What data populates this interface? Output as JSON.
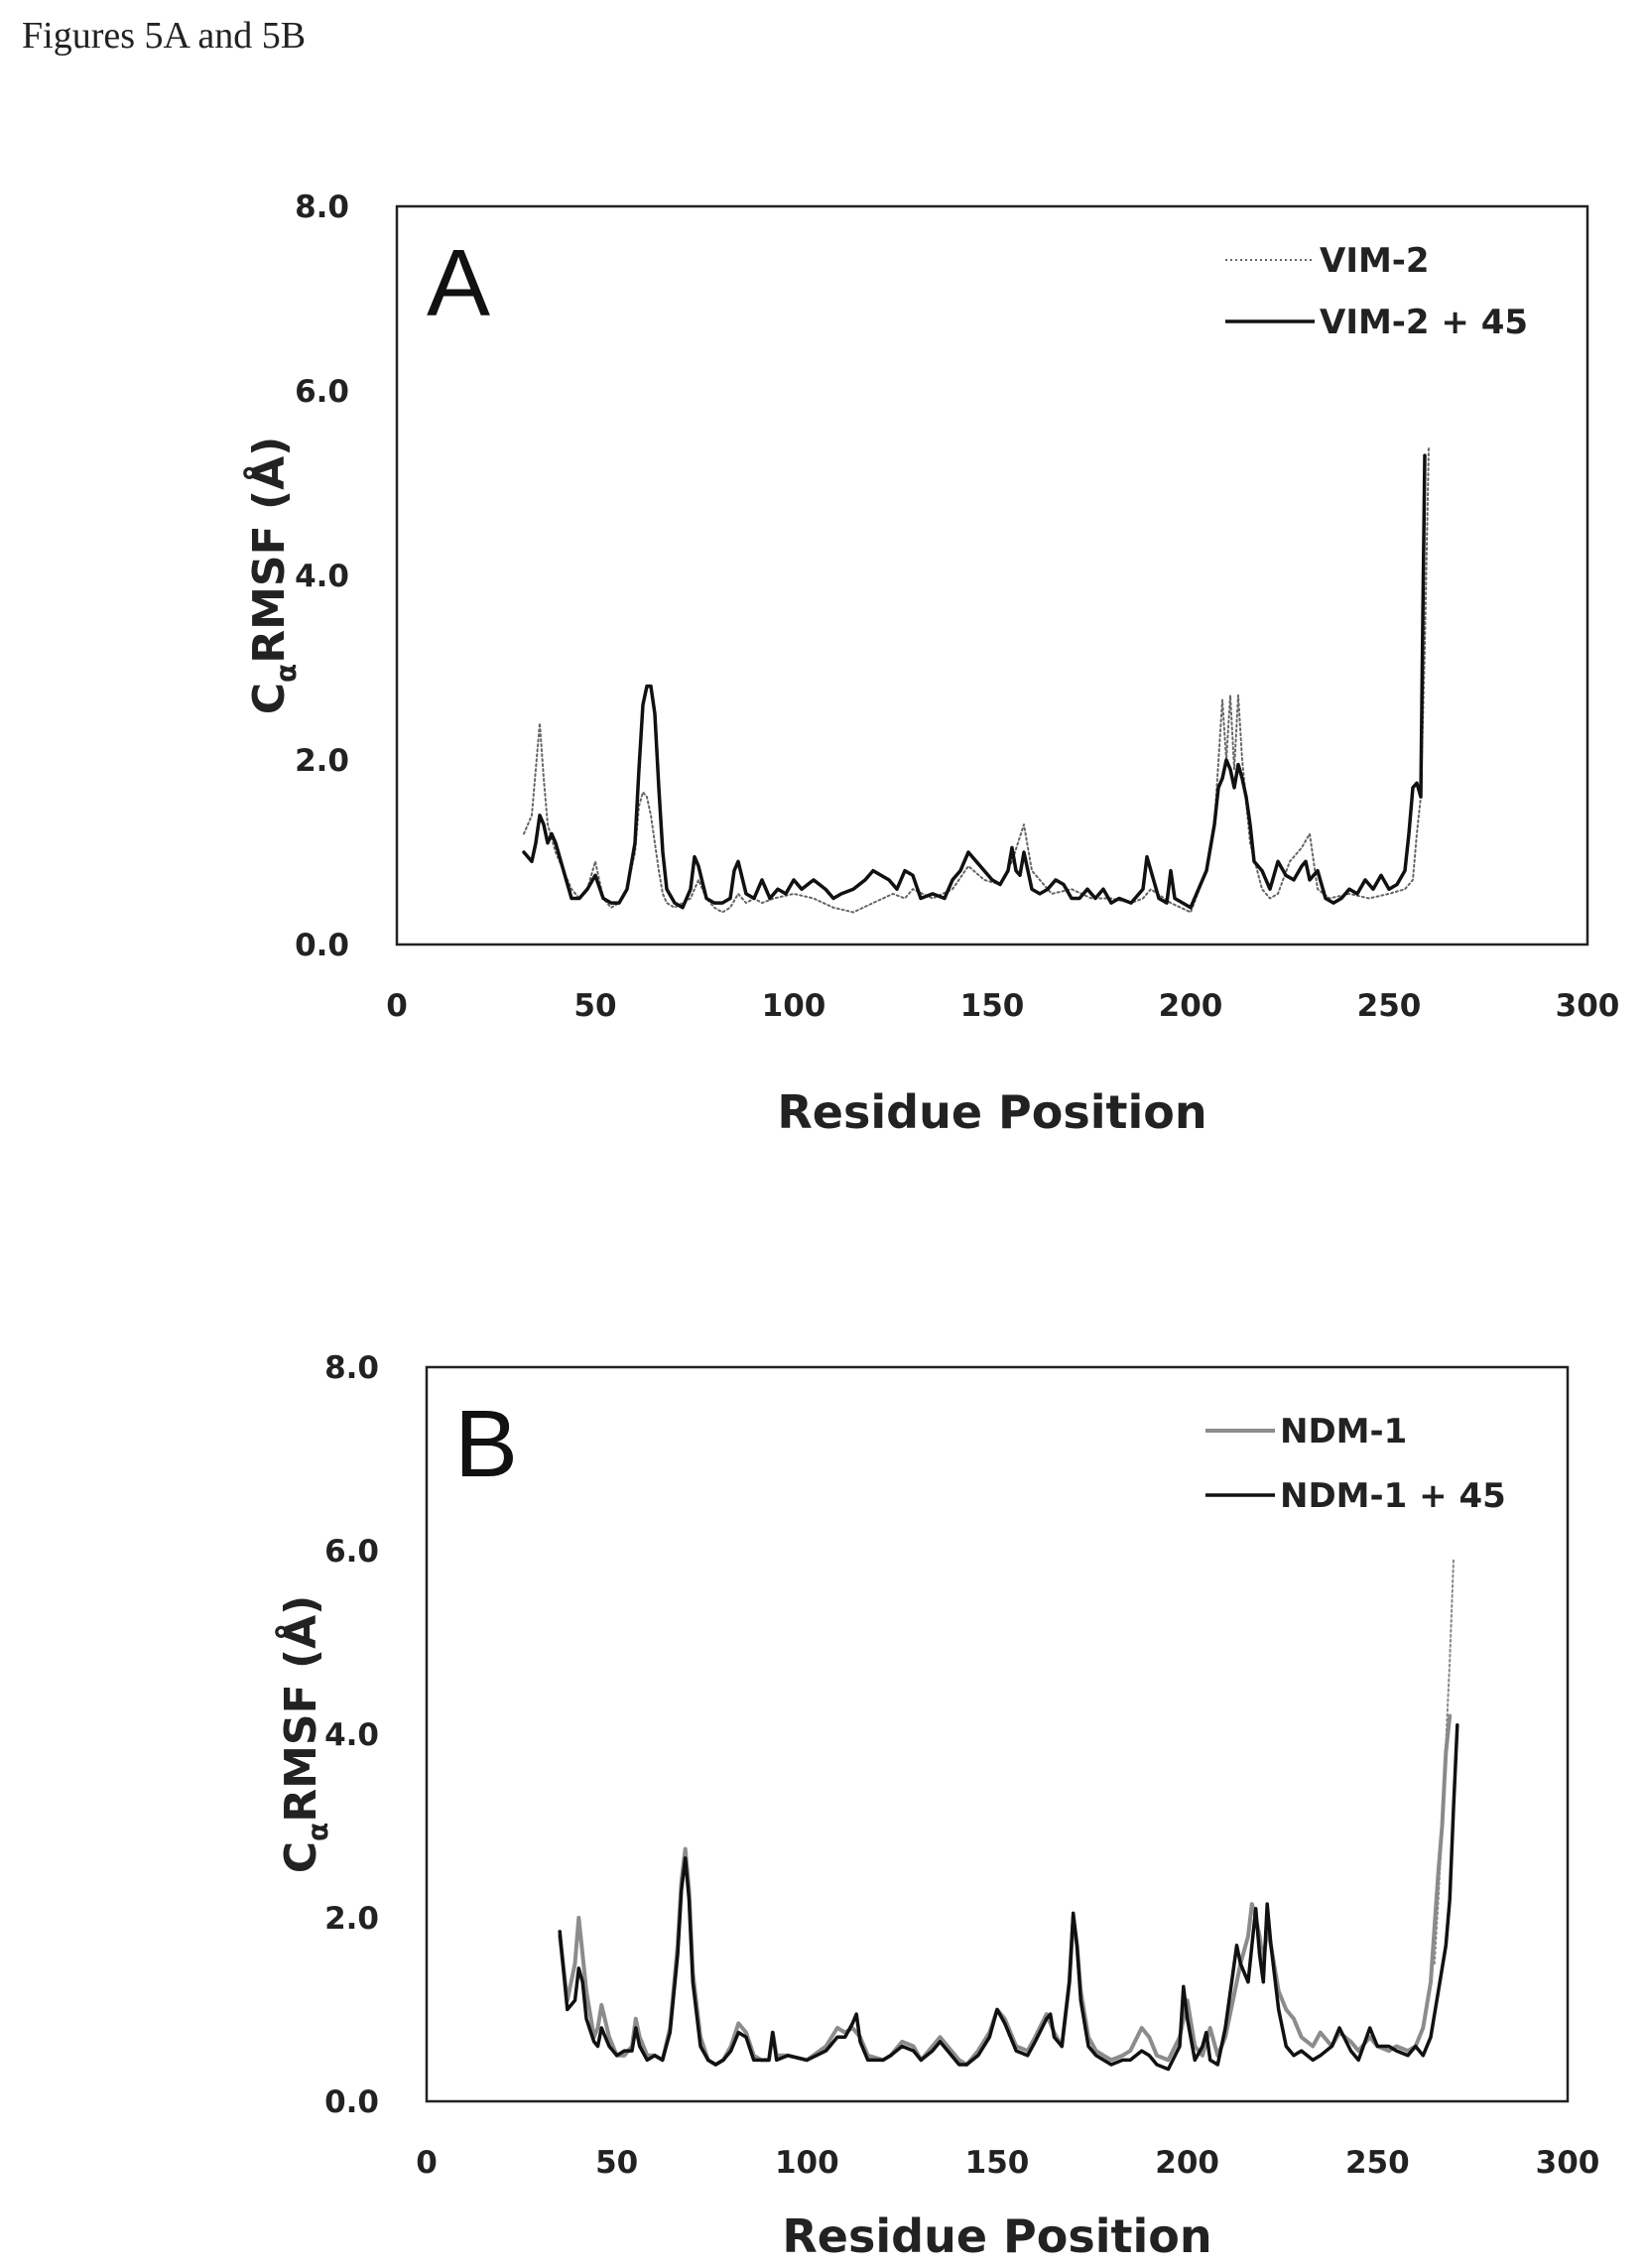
{
  "page": {
    "caption": "Figures 5A and 5B"
  },
  "chart_data": [
    {
      "type": "line",
      "panel_label": "A",
      "xlabel": "Residue Position",
      "ylabel": "Cα RMSF (Å)",
      "ylabel_parts": {
        "main": "C",
        "sub": "α",
        "rest": "RMSF (Å)"
      },
      "xlim": [
        0,
        300
      ],
      "ylim": [
        0,
        8
      ],
      "x_ticks": [
        "0",
        "50",
        "100",
        "150",
        "200",
        "250",
        "300"
      ],
      "y_ticks": [
        "0.0",
        "2.0",
        "4.0",
        "6.0",
        "8.0"
      ],
      "grid": false,
      "legend_position": "top-right",
      "legend": [
        "VIM-2",
        "VIM-2 + 45"
      ],
      "series": [
        {
          "name": "VIM-2",
          "style": "dotted",
          "color": "#666666",
          "x": [
            32,
            34,
            36,
            37,
            38,
            40,
            42,
            44,
            46,
            48,
            50,
            52,
            54,
            56,
            58,
            60,
            61,
            62,
            63,
            64,
            65,
            66,
            67,
            68,
            70,
            72,
            74,
            76,
            78,
            80,
            82,
            84,
            86,
            88,
            90,
            92,
            95,
            100,
            105,
            110,
            115,
            120,
            125,
            128,
            130,
            135,
            140,
            144,
            148,
            152,
            155,
            158,
            160,
            165,
            170,
            175,
            180,
            185,
            188,
            190,
            195,
            200,
            204,
            206,
            208,
            209,
            210,
            211,
            212,
            213,
            215,
            218,
            220,
            222,
            225,
            228,
            230,
            232,
            235,
            240,
            245,
            250,
            254,
            256,
            257,
            258,
            259,
            260
          ],
          "y": [
            1.2,
            1.4,
            2.4,
            1.8,
            1.3,
            1.0,
            0.8,
            0.6,
            0.5,
            0.6,
            0.9,
            0.5,
            0.4,
            0.45,
            0.6,
            1.0,
            1.5,
            1.65,
            1.6,
            1.4,
            1.1,
            0.8,
            0.55,
            0.45,
            0.4,
            0.45,
            0.5,
            0.7,
            0.5,
            0.4,
            0.35,
            0.4,
            0.55,
            0.45,
            0.5,
            0.45,
            0.5,
            0.55,
            0.5,
            0.4,
            0.35,
            0.45,
            0.55,
            0.5,
            0.6,
            0.5,
            0.6,
            0.85,
            0.7,
            0.65,
            0.9,
            1.3,
            0.8,
            0.55,
            0.6,
            0.5,
            0.5,
            0.45,
            0.5,
            0.6,
            0.45,
            0.35,
            0.8,
            1.3,
            2.65,
            2.0,
            2.7,
            1.9,
            2.7,
            2.0,
            1.1,
            0.6,
            0.5,
            0.55,
            0.9,
            1.05,
            1.2,
            0.6,
            0.5,
            0.55,
            0.5,
            0.55,
            0.6,
            0.7,
            1.2,
            1.6,
            3.2,
            5.4
          ]
        },
        {
          "name": "VIM-2 + 45",
          "style": "solid",
          "color": "#111111",
          "x": [
            32,
            34,
            35,
            36,
            37,
            38,
            39,
            40,
            42,
            44,
            46,
            48,
            50,
            52,
            54,
            56,
            58,
            60,
            61,
            62,
            63,
            64,
            65,
            66,
            67,
            68,
            70,
            72,
            74,
            75,
            76,
            78,
            80,
            82,
            84,
            85,
            86,
            88,
            90,
            92,
            94,
            96,
            98,
            100,
            102,
            105,
            108,
            110,
            112,
            115,
            118,
            120,
            122,
            124,
            126,
            128,
            130,
            132,
            135,
            138,
            140,
            142,
            144,
            146,
            148,
            150,
            152,
            154,
            155,
            156,
            157,
            158,
            159,
            160,
            162,
            164,
            166,
            168,
            170,
            172,
            174,
            176,
            178,
            180,
            182,
            185,
            188,
            189,
            190,
            192,
            194,
            195,
            196,
            198,
            200,
            202,
            204,
            206,
            207,
            208,
            209,
            210,
            211,
            212,
            213,
            214,
            215,
            216,
            218,
            220,
            222,
            224,
            226,
            228,
            229,
            230,
            232,
            234,
            236,
            238,
            240,
            242,
            244,
            246,
            248,
            250,
            252,
            254,
            255,
            256,
            257,
            258,
            258.5,
            259
          ],
          "y": [
            1.0,
            0.9,
            1.1,
            1.4,
            1.3,
            1.1,
            1.2,
            1.1,
            0.8,
            0.5,
            0.5,
            0.6,
            0.75,
            0.5,
            0.45,
            0.45,
            0.6,
            1.1,
            1.9,
            2.6,
            2.8,
            2.8,
            2.5,
            1.7,
            1.0,
            0.6,
            0.45,
            0.4,
            0.6,
            0.95,
            0.85,
            0.5,
            0.45,
            0.45,
            0.5,
            0.8,
            0.9,
            0.55,
            0.5,
            0.7,
            0.5,
            0.6,
            0.55,
            0.7,
            0.6,
            0.7,
            0.6,
            0.5,
            0.55,
            0.6,
            0.7,
            0.8,
            0.75,
            0.7,
            0.6,
            0.8,
            0.75,
            0.5,
            0.55,
            0.5,
            0.7,
            0.8,
            1.0,
            0.9,
            0.8,
            0.7,
            0.65,
            0.8,
            1.05,
            0.8,
            0.75,
            1.0,
            0.8,
            0.6,
            0.55,
            0.6,
            0.7,
            0.65,
            0.5,
            0.5,
            0.6,
            0.5,
            0.6,
            0.45,
            0.5,
            0.45,
            0.6,
            0.95,
            0.8,
            0.5,
            0.45,
            0.8,
            0.5,
            0.45,
            0.4,
            0.6,
            0.8,
            1.3,
            1.7,
            1.8,
            2.0,
            1.9,
            1.7,
            1.95,
            1.8,
            1.6,
            1.3,
            0.9,
            0.8,
            0.6,
            0.9,
            0.75,
            0.7,
            0.85,
            0.9,
            0.7,
            0.8,
            0.5,
            0.45,
            0.5,
            0.6,
            0.55,
            0.7,
            0.6,
            0.75,
            0.6,
            0.65,
            0.8,
            1.2,
            1.7,
            1.75,
            1.6,
            3.5,
            5.3
          ]
        }
      ]
    },
    {
      "type": "line",
      "panel_label": "B",
      "xlabel": "Residue Position",
      "ylabel": "Cα RMSF (Å)",
      "ylabel_parts": {
        "main": "C",
        "sub": "α",
        "rest": "RMSF (Å)"
      },
      "xlim": [
        0,
        300
      ],
      "ylim": [
        0,
        8
      ],
      "x_ticks": [
        "0",
        "50",
        "100",
        "150",
        "200",
        "250",
        "300"
      ],
      "y_ticks": [
        "0.0",
        "2.0",
        "4.0",
        "6.0",
        "8.0"
      ],
      "grid": false,
      "legend_position": "top-right",
      "legend": [
        "NDM-1",
        "NDM-1 + 45"
      ],
      "series": [
        {
          "name": "NDM-1",
          "style": "solid",
          "color": "#8c8c8c",
          "x": [
            35,
            37,
            39,
            40,
            41,
            42,
            44,
            45,
            46,
            48,
            50,
            52,
            54,
            55,
            56,
            58,
            60,
            62,
            64,
            66,
            67,
            68,
            69,
            70,
            72,
            74,
            76,
            78,
            80,
            82,
            84,
            86,
            88,
            90,
            91,
            92,
            95,
            100,
            105,
            108,
            110,
            112,
            114,
            116,
            120,
            122,
            125,
            128,
            130,
            133,
            135,
            138,
            140,
            142,
            145,
            148,
            150,
            152,
            155,
            158,
            160,
            163,
            165,
            167,
            169,
            170,
            171,
            172,
            174,
            176,
            178,
            180,
            183,
            185,
            188,
            190,
            192,
            195,
            198,
            200,
            202,
            204,
            206,
            208,
            210,
            212,
            214,
            216,
            217,
            218,
            219,
            220,
            221,
            222,
            224,
            226,
            228,
            230,
            233,
            235,
            238,
            240,
            243,
            245,
            248,
            250,
            253,
            255,
            258,
            260,
            262,
            264,
            266,
            267,
            268,
            269
          ],
          "y": [
            1.8,
            1.1,
            1.5,
            2.0,
            1.6,
            1.2,
            0.7,
            0.8,
            1.05,
            0.7,
            0.5,
            0.5,
            0.6,
            0.9,
            0.7,
            0.5,
            0.5,
            0.45,
            0.8,
            1.7,
            2.4,
            2.75,
            2.3,
            1.4,
            0.7,
            0.45,
            0.4,
            0.45,
            0.6,
            0.85,
            0.75,
            0.5,
            0.45,
            0.45,
            0.75,
            0.5,
            0.5,
            0.45,
            0.6,
            0.8,
            0.75,
            0.8,
            0.7,
            0.5,
            0.45,
            0.5,
            0.65,
            0.6,
            0.45,
            0.6,
            0.7,
            0.55,
            0.45,
            0.4,
            0.55,
            0.75,
            1.0,
            0.9,
            0.6,
            0.55,
            0.7,
            0.95,
            0.75,
            0.6,
            1.3,
            2.0,
            1.7,
            1.2,
            0.7,
            0.55,
            0.5,
            0.45,
            0.5,
            0.55,
            0.8,
            0.7,
            0.5,
            0.45,
            0.7,
            1.1,
            0.6,
            0.5,
            0.8,
            0.5,
            0.7,
            1.1,
            1.5,
            1.8,
            2.15,
            2.0,
            1.8,
            1.5,
            1.9,
            1.7,
            1.2,
            1.0,
            0.9,
            0.7,
            0.6,
            0.75,
            0.6,
            0.75,
            0.65,
            0.55,
            0.7,
            0.6,
            0.55,
            0.6,
            0.55,
            0.6,
            0.8,
            1.3,
            2.5,
            3.0,
            3.8,
            4.2
          ]
        },
        {
          "name": "NDM-1 + 45",
          "style": "solid",
          "color": "#111111",
          "x": [
            35,
            37,
            39,
            40,
            41,
            42,
            44,
            45,
            46,
            48,
            50,
            52,
            54,
            55,
            56,
            58,
            60,
            62,
            64,
            66,
            67,
            68,
            69,
            70,
            72,
            74,
            76,
            78,
            80,
            82,
            84,
            86,
            88,
            90,
            91,
            92,
            95,
            100,
            105,
            108,
            110,
            112,
            113,
            114,
            116,
            120,
            122,
            125,
            128,
            130,
            133,
            135,
            138,
            140,
            142,
            145,
            148,
            150,
            152,
            155,
            158,
            160,
            163,
            164,
            165,
            167,
            169,
            170,
            171,
            172,
            174,
            176,
            178,
            180,
            183,
            185,
            188,
            190,
            192,
            195,
            198,
            199,
            200,
            202,
            204,
            205,
            206,
            208,
            210,
            212,
            213,
            214,
            216,
            217,
            218,
            219,
            220,
            221,
            222,
            224,
            226,
            228,
            230,
            233,
            235,
            238,
            240,
            243,
            245,
            248,
            250,
            253,
            255,
            258,
            260,
            262,
            264,
            266,
            268,
            269,
            270,
            271
          ],
          "y": [
            1.85,
            1.0,
            1.1,
            1.45,
            1.3,
            0.9,
            0.65,
            0.6,
            0.8,
            0.6,
            0.5,
            0.55,
            0.55,
            0.8,
            0.6,
            0.45,
            0.5,
            0.45,
            0.75,
            1.6,
            2.3,
            2.65,
            2.2,
            1.3,
            0.6,
            0.45,
            0.4,
            0.45,
            0.55,
            0.75,
            0.7,
            0.45,
            0.45,
            0.45,
            0.75,
            0.45,
            0.5,
            0.45,
            0.55,
            0.7,
            0.7,
            0.85,
            0.95,
            0.65,
            0.45,
            0.45,
            0.5,
            0.6,
            0.55,
            0.45,
            0.55,
            0.65,
            0.5,
            0.4,
            0.4,
            0.5,
            0.7,
            1.0,
            0.85,
            0.55,
            0.5,
            0.65,
            0.9,
            0.95,
            0.7,
            0.6,
            1.3,
            2.05,
            1.7,
            1.1,
            0.6,
            0.5,
            0.45,
            0.4,
            0.45,
            0.45,
            0.55,
            0.5,
            0.4,
            0.35,
            0.6,
            1.25,
            0.9,
            0.45,
            0.6,
            0.75,
            0.45,
            0.4,
            0.8,
            1.4,
            1.7,
            1.5,
            1.3,
            1.7,
            2.1,
            1.6,
            1.3,
            2.15,
            1.7,
            1.0,
            0.6,
            0.5,
            0.55,
            0.45,
            0.5,
            0.6,
            0.8,
            0.55,
            0.45,
            0.8,
            0.6,
            0.6,
            0.55,
            0.5,
            0.6,
            0.5,
            0.7,
            1.2,
            1.7,
            2.2,
            3.2,
            4.1
          ]
        },
        {
          "name": "",
          "style": "dotted",
          "color": "#888888",
          "x": [
            265,
            266,
            267,
            268,
            269,
            270
          ],
          "y": [
            1.5,
            2.2,
            3.0,
            3.9,
            4.8,
            5.9
          ]
        }
      ]
    }
  ]
}
